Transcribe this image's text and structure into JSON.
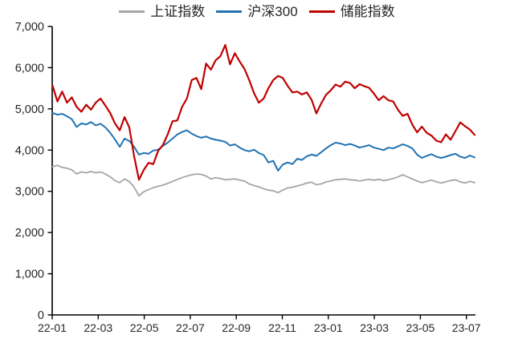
{
  "chart_data": {
    "type": "line",
    "title": "",
    "xlabel": "",
    "ylabel": "",
    "grid": false,
    "legend_position": "top-center",
    "y_axis": {
      "min": 0,
      "max": 7000,
      "tick_step": 1000,
      "tick_labels": [
        "0",
        "1,000",
        "2,000",
        "3,000",
        "4,000",
        "5,000",
        "6,000",
        "7,000"
      ]
    },
    "x_axis": {
      "tick_labels": [
        "22-01",
        "22-03",
        "22-05",
        "22-07",
        "22-09",
        "22-11",
        "23-01",
        "23-03",
        "23-05",
        "23-07"
      ],
      "range_note": "monthly data 2022-01 through 2023-07"
    },
    "series": [
      {
        "id": "shanghai-composite-index",
        "name": "上证指数",
        "color": "#a6a6a6",
        "stroke_width": 1.8,
        "values": [
          3600,
          3630,
          3580,
          3560,
          3520,
          3420,
          3470,
          3450,
          3480,
          3450,
          3470,
          3420,
          3350,
          3260,
          3210,
          3300,
          3240,
          3100,
          2890,
          2990,
          3040,
          3090,
          3120,
          3150,
          3190,
          3240,
          3290,
          3330,
          3370,
          3400,
          3420,
          3410,
          3370,
          3300,
          3330,
          3310,
          3280,
          3290,
          3300,
          3270,
          3250,
          3180,
          3140,
          3110,
          3060,
          3030,
          3010,
          2970,
          3030,
          3080,
          3100,
          3130,
          3160,
          3200,
          3220,
          3160,
          3180,
          3230,
          3250,
          3280,
          3290,
          3300,
          3280,
          3270,
          3250,
          3270,
          3290,
          3270,
          3290,
          3260,
          3280,
          3310,
          3350,
          3400,
          3350,
          3300,
          3250,
          3210,
          3240,
          3270,
          3230,
          3200,
          3230,
          3260,
          3280,
          3230,
          3200,
          3240,
          3210
        ]
      },
      {
        "id": "csi-300-index",
        "name": "沪深300",
        "color": "#2173b2",
        "stroke_width": 2,
        "values": [
          4900,
          4860,
          4880,
          4820,
          4750,
          4560,
          4650,
          4620,
          4680,
          4600,
          4640,
          4550,
          4420,
          4260,
          4080,
          4280,
          4220,
          4080,
          3890,
          3930,
          3910,
          3990,
          4010,
          4100,
          4180,
          4280,
          4380,
          4440,
          4480,
          4400,
          4340,
          4300,
          4330,
          4280,
          4250,
          4230,
          4200,
          4110,
          4140,
          4060,
          4000,
          3970,
          4010,
          3930,
          3880,
          3700,
          3740,
          3500,
          3650,
          3700,
          3660,
          3790,
          3760,
          3850,
          3890,
          3860,
          3950,
          4040,
          4120,
          4180,
          4160,
          4120,
          4150,
          4110,
          4060,
          4090,
          4120,
          4060,
          4030,
          4000,
          4060,
          4040,
          4090,
          4140,
          4100,
          4040,
          3890,
          3810,
          3860,
          3900,
          3840,
          3810,
          3840,
          3880,
          3910,
          3840,
          3810,
          3870,
          3820
        ]
      },
      {
        "id": "energy-storage-index",
        "name": "储能指数",
        "color": "#c00000",
        "stroke_width": 2.2,
        "values": [
          5560,
          5180,
          5420,
          5150,
          5280,
          5050,
          4930,
          5100,
          4980,
          5150,
          5250,
          5080,
          4900,
          4650,
          4480,
          4800,
          4550,
          3850,
          3280,
          3520,
          3690,
          3660,
          3980,
          4120,
          4380,
          4700,
          4720,
          5050,
          5250,
          5700,
          5750,
          5480,
          6100,
          5950,
          6180,
          6280,
          6550,
          6080,
          6350,
          6150,
          5970,
          5700,
          5380,
          5150,
          5250,
          5500,
          5700,
          5800,
          5750,
          5560,
          5400,
          5420,
          5350,
          5400,
          5220,
          4890,
          5130,
          5340,
          5450,
          5590,
          5540,
          5660,
          5630,
          5500,
          5600,
          5550,
          5510,
          5370,
          5210,
          5310,
          5210,
          5180,
          4980,
          4830,
          4880,
          4620,
          4430,
          4570,
          4420,
          4350,
          4230,
          4190,
          4380,
          4250,
          4460,
          4670,
          4580,
          4500,
          4370
        ]
      }
    ]
  },
  "colors": {
    "background": "#ffffff",
    "axis": "#000000",
    "text": "#262626"
  }
}
